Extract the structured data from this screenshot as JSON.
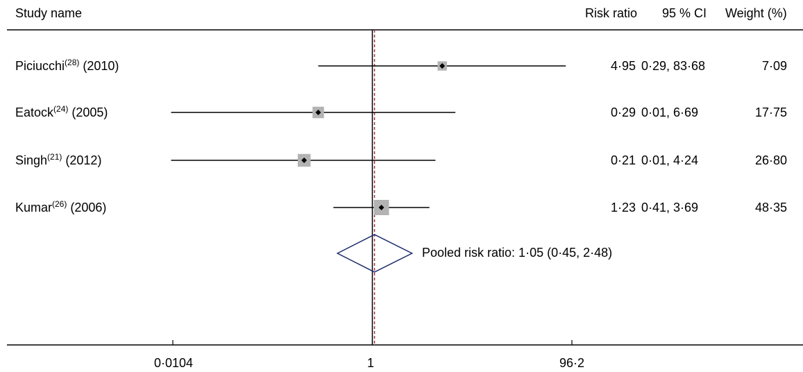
{
  "header": {
    "study_name": "Study name",
    "risk_ratio": "Risk ratio",
    "ci": "95 % CI",
    "weight": "Weight (%)"
  },
  "chart_data": {
    "type": "forest",
    "scale": "log",
    "xlim": [
      0.0104,
      96.2
    ],
    "xticks": [
      "0·0104",
      "1",
      "96·2"
    ],
    "reference_line": 1,
    "pooled_reference_line": 1.05,
    "studies": [
      {
        "name": "Piciucchi",
        "ref": "(28)",
        "year": "(2010)",
        "rr": 4.95,
        "lo": 0.29,
        "hi": 83.68,
        "weight": 7.09,
        "rr_text": "4·95",
        "ci_text": "0·29, 83·68",
        "weight_text": "7·09"
      },
      {
        "name": "Eatock",
        "ref": "(24)",
        "year": "(2005)",
        "rr": 0.29,
        "lo": 0.01,
        "hi": 6.69,
        "weight": 17.75,
        "rr_text": "0·29",
        "ci_text": "0·01, 6·69",
        "weight_text": "17·75"
      },
      {
        "name": "Singh",
        "ref": "(21)",
        "year": "(2012)",
        "rr": 0.21,
        "lo": 0.01,
        "hi": 4.24,
        "weight": 26.8,
        "rr_text": "0·21",
        "ci_text": "0·01, 4·24",
        "weight_text": "26·80"
      },
      {
        "name": "Kumar",
        "ref": "(26)",
        "year": "(2006)",
        "rr": 1.23,
        "lo": 0.41,
        "hi": 3.69,
        "weight": 48.35,
        "rr_text": "1·23",
        "ci_text": "0·41, 3·69",
        "weight_text": "48·35"
      }
    ],
    "pooled": {
      "rr": 1.05,
      "lo": 0.45,
      "hi": 2.48,
      "label": "Pooled risk ratio: 1·05 (0·45, 2·48)"
    },
    "colors": {
      "line": "#000000",
      "box": "#b3b3b3",
      "diamond": "#1a2a6c",
      "dashed": "#a0303a"
    }
  }
}
